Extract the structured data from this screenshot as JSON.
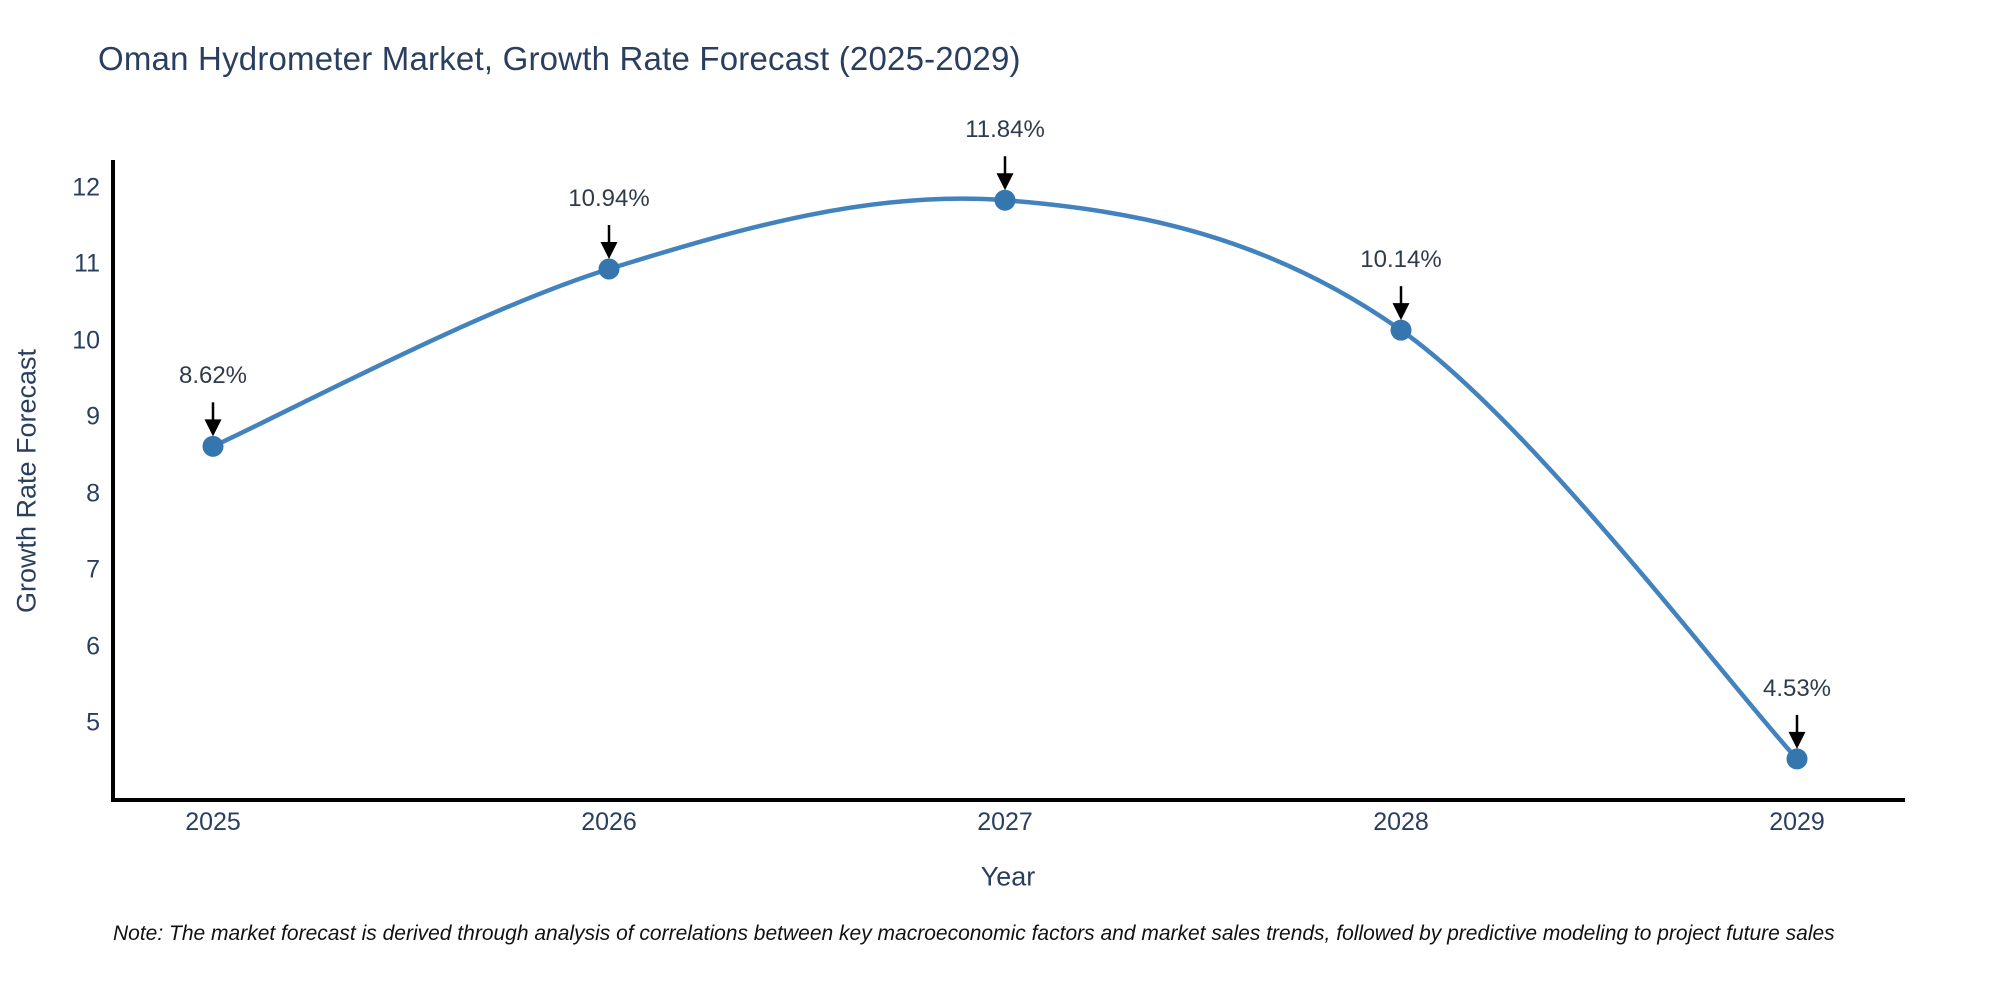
{
  "header": {
    "title": "Oman Hydrometer Market, Growth Rate Forecast (2025-2029)"
  },
  "footer": {
    "note": "Note: The market forecast is derived through analysis of correlations between key macroeconomic factors and market sales trends, followed by predictive modeling to project future sales"
  },
  "chart_data": {
    "type": "line",
    "title": "Oman Hydrometer Market, Growth Rate Forecast (2025-2029)",
    "x": [
      2025,
      2026,
      2027,
      2028,
      2029
    ],
    "values": [
      8.62,
      10.94,
      11.84,
      10.14,
      4.53
    ],
    "point_labels": [
      "8.62%",
      "10.94%",
      "11.84%",
      "10.14%",
      "4.53%"
    ],
    "xtick_labels": [
      "2025",
      "2026",
      "2027",
      "2028",
      "2029"
    ],
    "yticks": [
      5,
      6,
      7,
      8,
      9,
      10,
      11,
      12
    ],
    "xlabel": "Year",
    "ylabel": "Growth Rate Forecast",
    "ylim": [
      4.0,
      12.4
    ],
    "grid": false,
    "legend": "none",
    "line_shape": "spline",
    "colors": {
      "line": "#4383bd",
      "marker": "#3676ae",
      "arrow": "#000000",
      "axis": "#000000",
      "text": "#2a3f5f",
      "annotation_text": "#2f3b4c"
    }
  }
}
